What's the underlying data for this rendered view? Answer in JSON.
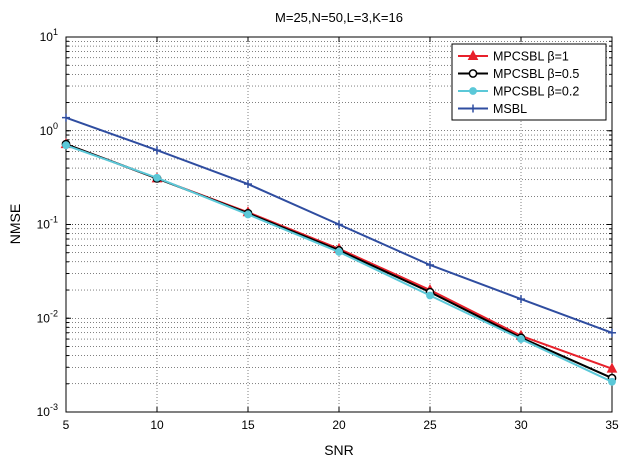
{
  "chart_data": {
    "type": "line",
    "title": "M=25,N=50,L=3,K=16",
    "xlabel": "SNR",
    "ylabel": "NMSE",
    "xlim": [
      5,
      35
    ],
    "ylim": [
      0.001,
      10
    ],
    "yscale": "log",
    "grid": true,
    "legend_position": "top-right",
    "x": [
      5,
      10,
      15,
      20,
      25,
      30,
      35
    ],
    "x_ticks": [
      "5",
      "10",
      "15",
      "20",
      "25",
      "30",
      "35"
    ],
    "series": [
      {
        "name": "MPCSBL β=1",
        "color": "#e8212b",
        "marker": "triangle",
        "values": [
          0.72,
          0.31,
          0.135,
          0.055,
          0.02,
          0.0065,
          0.0029
        ]
      },
      {
        "name": "MPCSBL β=0.5",
        "color": "#000000",
        "marker": "circle",
        "values": [
          0.72,
          0.31,
          0.132,
          0.053,
          0.019,
          0.0062,
          0.0023
        ]
      },
      {
        "name": "MPCSBL β=0.2",
        "color": "#5bc8d8",
        "marker": "diamond",
        "values": [
          0.7,
          0.315,
          0.128,
          0.051,
          0.0175,
          0.006,
          0.0021
        ]
      },
      {
        "name": "MSBL",
        "color": "#2f4da0",
        "marker": "plus",
        "values": [
          1.38,
          0.62,
          0.27,
          0.1,
          0.037,
          0.016,
          0.007
        ]
      }
    ]
  }
}
